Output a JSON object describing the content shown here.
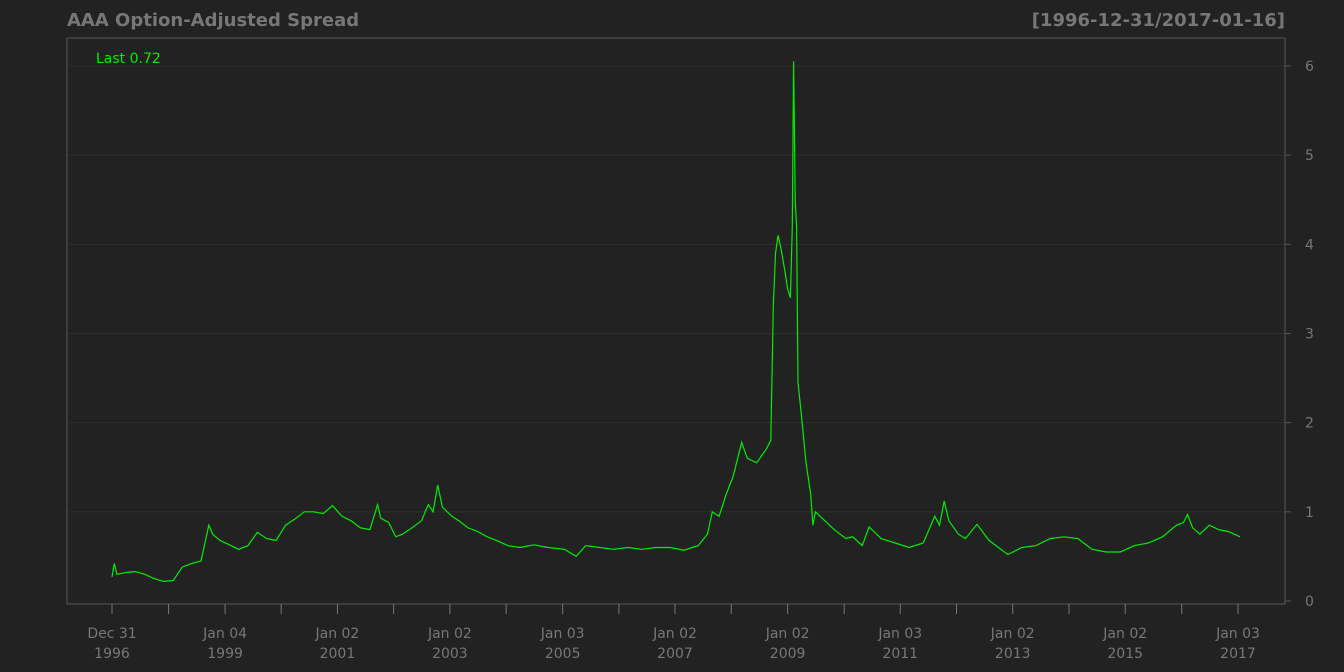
{
  "chart_data": {
    "type": "line",
    "title": "AAA Option-Adjusted Spread",
    "date_range_label": "[1996-12-31/2017-01-16]",
    "last_label": "Last 0.72",
    "xlabel": "",
    "ylabel": "",
    "ylim": [
      0,
      6.2
    ],
    "yticks": [
      0,
      1,
      2,
      3,
      4,
      5,
      6
    ],
    "x_range": [
      "1996-12-31",
      "2017-01-16"
    ],
    "grid": true,
    "colors": {
      "background": "#222222",
      "line": "#00ee00",
      "axis_text": "#777777",
      "grid": "#2e2e2e"
    },
    "x_tick_labels": [
      {
        "date": "1996-12-31",
        "line1": "Dec 31",
        "line2": "1996"
      },
      {
        "date": "1999-01-04",
        "line1": "Jan 04",
        "line2": "1999"
      },
      {
        "date": "2001-01-02",
        "line1": "Jan 02",
        "line2": "2001"
      },
      {
        "date": "2003-01-02",
        "line1": "Jan 02",
        "line2": "2003"
      },
      {
        "date": "2005-01-03",
        "line1": "Jan 03",
        "line2": "2005"
      },
      {
        "date": "2007-01-02",
        "line1": "Jan 02",
        "line2": "2007"
      },
      {
        "date": "2009-01-02",
        "line1": "Jan 02",
        "line2": "2009"
      },
      {
        "date": "2011-01-03",
        "line1": "Jan 03",
        "line2": "2011"
      },
      {
        "date": "2013-01-02",
        "line1": "Jan 02",
        "line2": "2013"
      },
      {
        "date": "2015-01-02",
        "line1": "Jan 02",
        "line2": "2015"
      },
      {
        "date": "2017-01-03",
        "line1": "Jan 03",
        "line2": "2017"
      }
    ],
    "x_minor_ticks": [
      "1998-01-02",
      "2000-01-03",
      "2002-01-02",
      "2004-01-02",
      "2006-01-03",
      "2008-01-02",
      "2010-01-04",
      "2012-01-03",
      "2014-01-02",
      "2016-01-04"
    ],
    "series": [
      {
        "values": [
          [
            "1996-12-31",
            0.27
          ],
          [
            "1997-01-15",
            0.42
          ],
          [
            "1997-02-01",
            0.3
          ],
          [
            "1997-04-01",
            0.32
          ],
          [
            "1997-06-01",
            0.33
          ],
          [
            "1997-08-01",
            0.3
          ],
          [
            "1997-10-01",
            0.25
          ],
          [
            "1997-12-01",
            0.22
          ],
          [
            "1998-02-01",
            0.23
          ],
          [
            "1998-04-01",
            0.38
          ],
          [
            "1998-06-01",
            0.42
          ],
          [
            "1998-08-01",
            0.45
          ],
          [
            "1998-09-20",
            0.85
          ],
          [
            "1998-10-15",
            0.75
          ],
          [
            "1998-12-01",
            0.68
          ],
          [
            "1999-02-01",
            0.63
          ],
          [
            "1999-04-01",
            0.58
          ],
          [
            "1999-06-01",
            0.62
          ],
          [
            "1999-08-01",
            0.77
          ],
          [
            "1999-10-01",
            0.7
          ],
          [
            "1999-12-01",
            0.68
          ],
          [
            "2000-02-01",
            0.85
          ],
          [
            "2000-04-01",
            0.92
          ],
          [
            "2000-06-01",
            1.0
          ],
          [
            "2000-08-01",
            1.0
          ],
          [
            "2000-10-01",
            0.98
          ],
          [
            "2000-12-01",
            1.07
          ],
          [
            "2001-02-01",
            0.95
          ],
          [
            "2001-04-01",
            0.9
          ],
          [
            "2001-06-01",
            0.82
          ],
          [
            "2001-08-01",
            0.8
          ],
          [
            "2001-09-20",
            1.08
          ],
          [
            "2001-10-10",
            0.93
          ],
          [
            "2001-12-01",
            0.88
          ],
          [
            "2002-01-15",
            0.72
          ],
          [
            "2002-03-01",
            0.75
          ],
          [
            "2002-05-01",
            0.82
          ],
          [
            "2002-07-01",
            0.9
          ],
          [
            "2002-08-15",
            1.08
          ],
          [
            "2002-09-15",
            1.0
          ],
          [
            "2002-10-15",
            1.3
          ],
          [
            "2002-11-15",
            1.05
          ],
          [
            "2003-01-15",
            0.95
          ],
          [
            "2003-03-01",
            0.9
          ],
          [
            "2003-05-01",
            0.82
          ],
          [
            "2003-07-01",
            0.78
          ],
          [
            "2003-09-01",
            0.72
          ],
          [
            "2003-11-01",
            0.68
          ],
          [
            "2004-01-15",
            0.62
          ],
          [
            "2004-04-01",
            0.6
          ],
          [
            "2004-07-01",
            0.63
          ],
          [
            "2004-10-01",
            0.6
          ],
          [
            "2005-01-15",
            0.58
          ],
          [
            "2005-04-01",
            0.5
          ],
          [
            "2005-06-01",
            0.62
          ],
          [
            "2005-09-01",
            0.6
          ],
          [
            "2005-12-01",
            0.58
          ],
          [
            "2006-03-01",
            0.6
          ],
          [
            "2006-06-01",
            0.58
          ],
          [
            "2006-09-01",
            0.6
          ],
          [
            "2006-12-01",
            0.6
          ],
          [
            "2007-03-01",
            0.57
          ],
          [
            "2007-06-01",
            0.62
          ],
          [
            "2007-08-01",
            0.75
          ],
          [
            "2007-09-01",
            1.0
          ],
          [
            "2007-10-15",
            0.95
          ],
          [
            "2007-12-01",
            1.2
          ],
          [
            "2008-01-15",
            1.4
          ],
          [
            "2008-03-10",
            1.78
          ],
          [
            "2008-04-15",
            1.6
          ],
          [
            "2008-06-15",
            1.55
          ],
          [
            "2008-08-15",
            1.7
          ],
          [
            "2008-09-15",
            1.8
          ],
          [
            "2008-10-01",
            3.3
          ],
          [
            "2008-10-15",
            3.9
          ],
          [
            "2008-11-01",
            4.1
          ],
          [
            "2008-11-20",
            3.95
          ],
          [
            "2008-12-15",
            3.7
          ],
          [
            "2009-01-02",
            3.5
          ],
          [
            "2009-01-20",
            3.4
          ],
          [
            "2009-02-01",
            4.2
          ],
          [
            "2009-02-10",
            6.05
          ],
          [
            "2009-02-20",
            4.5
          ],
          [
            "2009-03-01",
            4.2
          ],
          [
            "2009-03-10",
            2.45
          ],
          [
            "2009-04-01",
            2.1
          ],
          [
            "2009-05-01",
            1.55
          ],
          [
            "2009-06-01",
            1.2
          ],
          [
            "2009-06-15",
            0.85
          ],
          [
            "2009-07-01",
            1.0
          ],
          [
            "2009-09-01",
            0.9
          ],
          [
            "2009-11-01",
            0.8
          ],
          [
            "2010-01-15",
            0.7
          ],
          [
            "2010-03-01",
            0.72
          ],
          [
            "2010-05-01",
            0.62
          ],
          [
            "2010-06-15",
            0.83
          ],
          [
            "2010-09-01",
            0.7
          ],
          [
            "2010-12-01",
            0.65
          ],
          [
            "2011-03-01",
            0.6
          ],
          [
            "2011-06-01",
            0.65
          ],
          [
            "2011-08-15",
            0.95
          ],
          [
            "2011-09-15",
            0.85
          ],
          [
            "2011-10-15",
            1.12
          ],
          [
            "2011-11-15",
            0.9
          ],
          [
            "2012-01-15",
            0.75
          ],
          [
            "2012-03-01",
            0.7
          ],
          [
            "2012-05-15",
            0.86
          ],
          [
            "2012-08-01",
            0.68
          ],
          [
            "2012-10-01",
            0.6
          ],
          [
            "2012-12-01",
            0.52
          ],
          [
            "2013-03-01",
            0.6
          ],
          [
            "2013-06-01",
            0.62
          ],
          [
            "2013-09-01",
            0.7
          ],
          [
            "2013-12-01",
            0.72
          ],
          [
            "2014-03-01",
            0.7
          ],
          [
            "2014-06-01",
            0.58
          ],
          [
            "2014-09-01",
            0.55
          ],
          [
            "2014-12-01",
            0.55
          ],
          [
            "2015-03-01",
            0.62
          ],
          [
            "2015-06-01",
            0.65
          ],
          [
            "2015-09-01",
            0.72
          ],
          [
            "2015-12-01",
            0.85
          ],
          [
            "2016-01-15",
            0.88
          ],
          [
            "2016-02-10",
            0.97
          ],
          [
            "2016-03-15",
            0.82
          ],
          [
            "2016-05-01",
            0.75
          ],
          [
            "2016-07-01",
            0.85
          ],
          [
            "2016-09-01",
            0.8
          ],
          [
            "2016-11-01",
            0.78
          ],
          [
            "2017-01-16",
            0.72
          ]
        ]
      }
    ]
  }
}
